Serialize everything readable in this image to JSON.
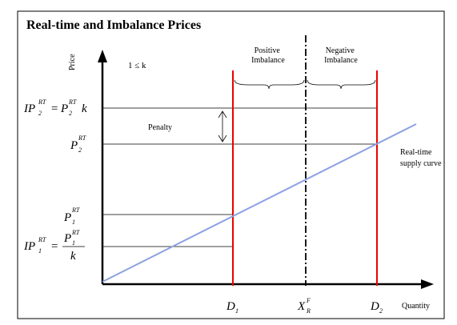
{
  "title": "Real-time and Imbalance Prices",
  "axes": {
    "y": "Price",
    "x": "Quantity"
  },
  "condition": "1 ≤ k",
  "regions": [
    {
      "lines": [
        "Positive",
        "Imbalance"
      ]
    },
    {
      "lines": [
        "Negative",
        "Imbalance"
      ]
    }
  ],
  "penalty": "Penalty",
  "curve": {
    "lines": [
      "Real-time",
      "supply curve"
    ]
  },
  "price_labels": {
    "ip2": {
      "base": "IP",
      "sub": "2",
      "sup": "RT",
      "eq": "=",
      "rhs_base": "P",
      "rhs_sub": "2",
      "rhs_sup": "RT",
      "factor": "k"
    },
    "p2": {
      "base": "P",
      "sub": "2",
      "sup": "RT"
    },
    "p1": {
      "base": "P",
      "sub": "1",
      "sup": "RT"
    },
    "ip1": {
      "base": "IP",
      "sub": "1",
      "sup": "RT",
      "eq": "=",
      "num_base": "P",
      "num_sub": "1",
      "num_sup": "RT",
      "den": "k"
    }
  },
  "quantity_labels": {
    "d1": {
      "base": "D",
      "sub": "1"
    },
    "xr": {
      "base": "X",
      "sub": "R",
      "sup": "F"
    },
    "d2": {
      "base": "D",
      "sub": "2"
    }
  }
}
